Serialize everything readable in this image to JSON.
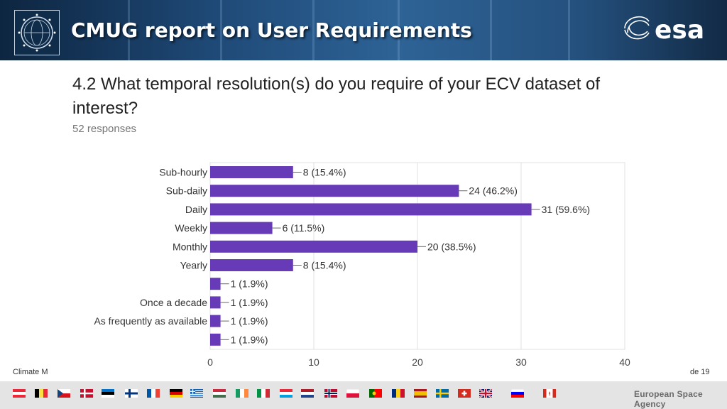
{
  "header": {
    "title": "CMUG report on User Requirements",
    "logo_text": "esa"
  },
  "question": {
    "text": "4.2 What temporal resolution(s) do you require of your ECV dataset of interest?",
    "responses": "52 responses"
  },
  "chart_data": {
    "type": "bar",
    "orientation": "horizontal",
    "bar_color": "#673ab7",
    "categories": [
      "Sub-hourly",
      "Sub-daily",
      "Daily",
      "Weekly",
      "Monthly",
      "Yearly",
      "",
      "Once a decade",
      "As frequently as available",
      ""
    ],
    "values": [
      8,
      24,
      31,
      6,
      20,
      8,
      1,
      1,
      1,
      1
    ],
    "data_labels": [
      "8 (15.4%)",
      "24 (46.2%)",
      "31 (59.6%)",
      "6 (11.5%)",
      "20 (38.5%)",
      "8 (15.4%)",
      "1 (1.9%)",
      "1 (1.9%)",
      "1 (1.9%)",
      "1 (1.9%)"
    ],
    "xlim": [
      0,
      40
    ],
    "xticks": [
      "0",
      "10",
      "20",
      "30",
      "40"
    ],
    "grid": true
  },
  "footer": {
    "left_text": "Climate M",
    "slide_text": "de  19",
    "agency": "European Space Agency"
  },
  "flags": [
    "austria",
    "belgium",
    "czechia",
    "denmark",
    "estonia",
    "finland",
    "france",
    "germany",
    "greece",
    "hungary",
    "ireland",
    "italy",
    "luxembourg",
    "netherlands",
    "norway",
    "poland",
    "portugal",
    "romania",
    "spain",
    "sweden",
    "switzerland",
    "united-kingdom",
    "slovenia",
    "canada"
  ]
}
